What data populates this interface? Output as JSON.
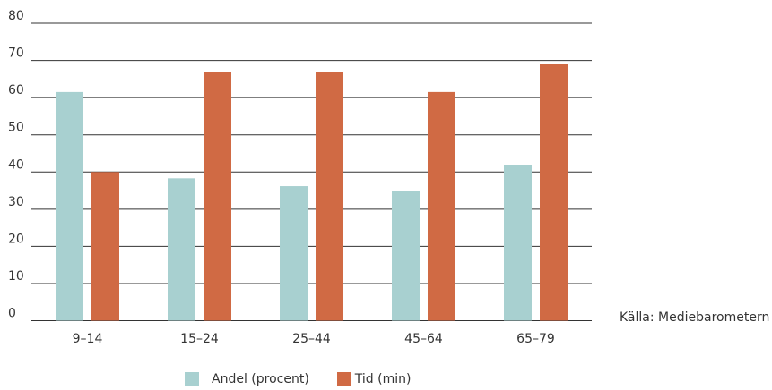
{
  "chart_data": {
    "type": "bar",
    "categories": [
      "9–14",
      "15–24",
      "25–44",
      "45–64",
      "65–79"
    ],
    "series": [
      {
        "name": "Andel (procent)",
        "values": [
          61.5,
          38.3,
          36.2,
          35.0,
          41.8
        ],
        "color": "#a8d0d0"
      },
      {
        "name": "Tid (min)",
        "values": [
          40,
          67,
          67,
          61.5,
          69
        ],
        "color": "#d06a44"
      }
    ],
    "ylim": [
      0,
      80
    ],
    "yticks": [
      0,
      10,
      20,
      30,
      40,
      50,
      60,
      70,
      80
    ],
    "grid": true,
    "legend": "bottom",
    "title": "",
    "xlabel": "",
    "ylabel": ""
  },
  "source_text": "Källa: Mediebarometern"
}
